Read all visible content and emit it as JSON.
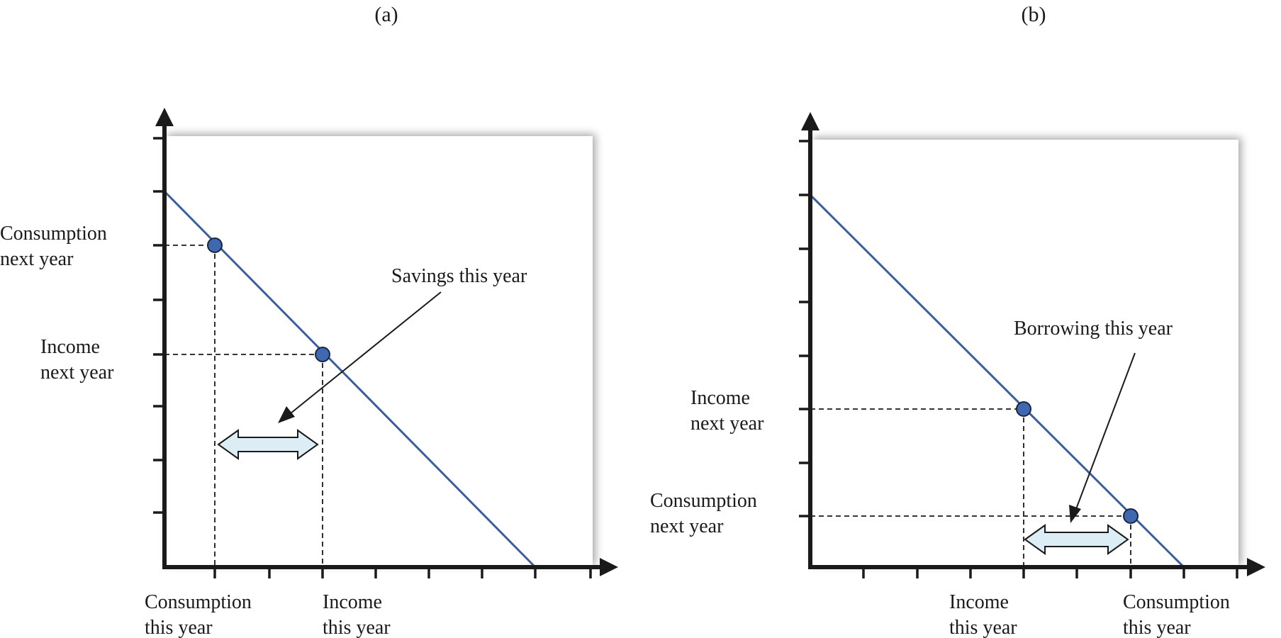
{
  "panels": [
    {
      "id": "a",
      "title": "(a)",
      "y_labels": {
        "consumption_next_year": [
          "Consumption",
          "next year"
        ],
        "income_next_year": [
          "Income",
          "next year"
        ]
      },
      "x_labels": {
        "consumption_this_year": [
          "Consumption",
          "this year"
        ],
        "income_this_year": [
          "Income",
          "this year"
        ]
      },
      "annotation": "Savings this year"
    },
    {
      "id": "b",
      "title": "(b)",
      "y_labels": {
        "income_next_year": [
          "Income",
          "next year"
        ],
        "consumption_next_year": [
          "Consumption",
          "next year"
        ]
      },
      "x_labels": {
        "income_this_year": [
          "Income",
          "this year"
        ],
        "consumption_this_year": [
          "Consumption",
          "this year"
        ]
      },
      "annotation": "Borrowing this year"
    }
  ],
  "colors": {
    "budget_line": "#3b5f9e",
    "point_fill": "#3f68b0",
    "double_arrow_fill": "#dcedf5",
    "axis": "#1a1a1a"
  }
}
